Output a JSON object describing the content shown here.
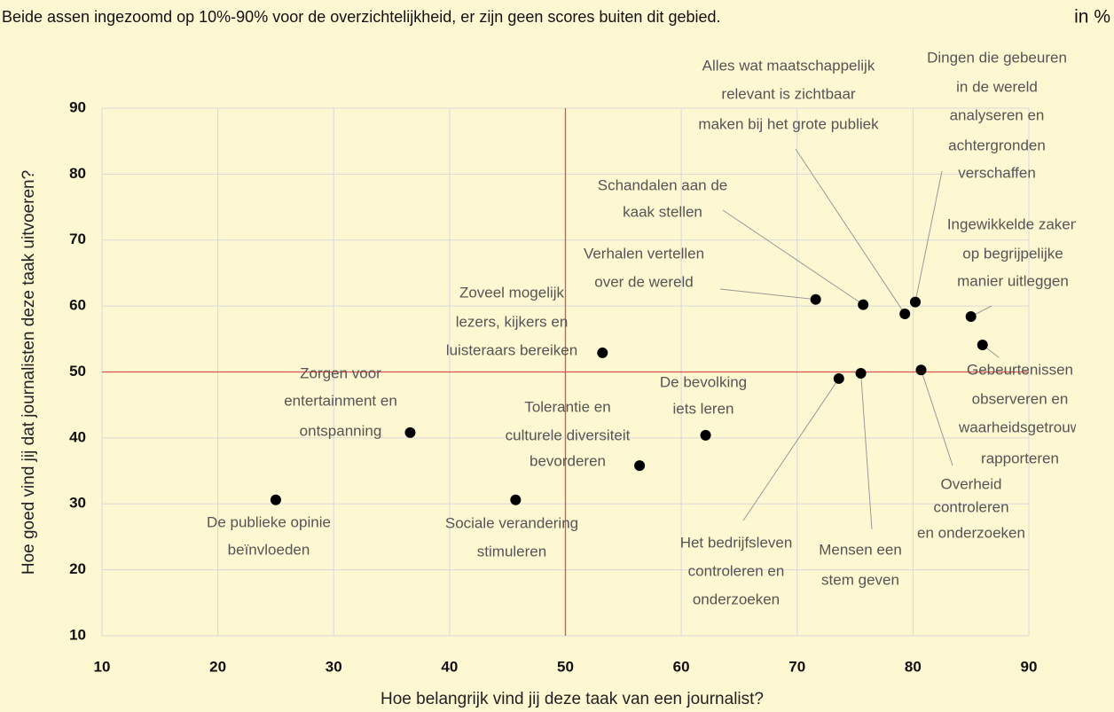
{
  "chart_data": {
    "type": "scatter",
    "subtitle": "Beide assen ingezoomd op 10%-90% voor de overzichtelijkheid, er zijn geen scores buiten dit gebied.",
    "unit_note": "in %",
    "xlabel": "Hoe belangrijk vind jij deze taak van een journalist?",
    "ylabel": "Hoe goed vind jij dat journalisten deze taak uitvoeren?",
    "xlim": [
      10,
      90
    ],
    "ylim": [
      10,
      90
    ],
    "xticks": [
      10,
      20,
      30,
      40,
      50,
      60,
      70,
      80,
      90
    ],
    "yticks": [
      10,
      20,
      30,
      40,
      50,
      60,
      70,
      80,
      90
    ],
    "grid": true,
    "reference_lines": {
      "x": 50,
      "y": 50,
      "color": "#d9534f"
    },
    "color": "#000000",
    "points": [
      {
        "label": [
          "De publieke opinie",
          "beïnvloeden"
        ],
        "x": 25.0,
        "y": 30.6
      },
      {
        "label": [
          "Zorgen voor",
          "entertainment en",
          "ontspanning"
        ],
        "x": 36.6,
        "y": 40.8
      },
      {
        "label": [
          "Sociale verandering",
          "stimuleren"
        ],
        "x": 45.7,
        "y": 30.6
      },
      {
        "label": [
          "Tolerantie en",
          "culturele diversiteit",
          "bevorderen"
        ],
        "x": 56.4,
        "y": 35.8
      },
      {
        "label": [
          "Zoveel mogelijk",
          "lezers, kijkers en",
          "luisteraars bereiken"
        ],
        "x": 53.2,
        "y": 52.9
      },
      {
        "label": [
          "De bevolking",
          "iets leren"
        ],
        "x": 62.1,
        "y": 40.4
      },
      {
        "label": [
          "Verhalen vertellen",
          "over de wereld"
        ],
        "x": 71.6,
        "y": 61.0
      },
      {
        "label": [
          "Schandalen aan de",
          "kaak stellen"
        ],
        "x": 75.7,
        "y": 60.2
      },
      {
        "label": [
          "Alles wat maatschappelijk",
          "relevant is zichtbaar",
          "maken bij het grote publiek"
        ],
        "x": 79.3,
        "y": 58.8
      },
      {
        "label": [
          "Dingen die gebeuren",
          "in de wereld",
          "analyseren en",
          "achtergronden",
          "verschaffen"
        ],
        "x": 80.2,
        "y": 60.6
      },
      {
        "label": [
          "Ingewikkelde zaken",
          "op begrijpelijke",
          "manier uitleggen"
        ],
        "x": 85.0,
        "y": 58.4
      },
      {
        "label": [
          "Gebeurtenissen",
          "observeren en",
          "waarheidsgetrouw",
          "rapporteren"
        ],
        "x": 86.0,
        "y": 54.1
      },
      {
        "label": [
          "Het bedrijfsleven",
          "controleren en",
          "onderzoeken"
        ],
        "x": 73.6,
        "y": 49.0
      },
      {
        "label": [
          "Mensen een",
          "stem geven"
        ],
        "x": 75.5,
        "y": 49.8
      },
      {
        "label": [
          "Overheid",
          "controleren",
          "en onderzoeken"
        ],
        "x": 80.7,
        "y": 50.3
      }
    ]
  }
}
